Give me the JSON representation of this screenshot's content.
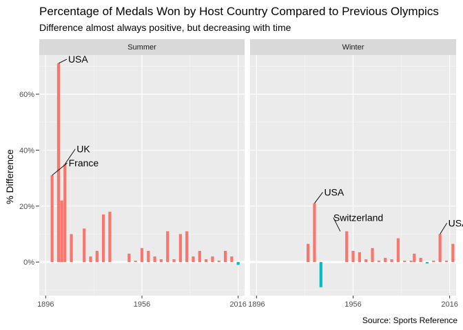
{
  "title": "Percentage of Medals Won by Host Country Compared to Previous Olympics",
  "subtitle": "Difference almost always positive, but decreasing with time",
  "caption": "Source: Sports Reference",
  "chart_data": {
    "type": "bar",
    "ylabel": "% Difference",
    "xlim": [
      1892,
      2020
    ],
    "ylim": [
      -0.12,
      0.74
    ],
    "x_ticks": [
      1896,
      1956,
      2016
    ],
    "x_tick_labels": [
      "1896",
      "1956",
      "2016"
    ],
    "y_ticks": [
      0,
      0.2,
      0.4,
      0.6
    ],
    "y_tick_labels": [
      "0%",
      "20%",
      "40%",
      "60%"
    ],
    "grid": true,
    "colors": {
      "positive": "#F8766D",
      "negative": "#00BFC4",
      "panel": "#EBEBEB",
      "strip": "#D9D9D9"
    },
    "panels": [
      {
        "name": "Summer",
        "bars": [
          {
            "year": 1900,
            "value": 0.31
          },
          {
            "year": 1904,
            "value": 0.71
          },
          {
            "year": 1906,
            "value": 0.22
          },
          {
            "year": 1908,
            "value": 0.35
          },
          {
            "year": 1912,
            "value": 0.1
          },
          {
            "year": 1920,
            "value": 0.12
          },
          {
            "year": 1924,
            "value": 0.02
          },
          {
            "year": 1928,
            "value": 0.04
          },
          {
            "year": 1932,
            "value": 0.17
          },
          {
            "year": 1936,
            "value": 0.18
          },
          {
            "year": 1948,
            "value": 0.03
          },
          {
            "year": 1952,
            "value": 0.005
          },
          {
            "year": 1956,
            "value": 0.05
          },
          {
            "year": 1960,
            "value": 0.04
          },
          {
            "year": 1964,
            "value": 0.02
          },
          {
            "year": 1968,
            "value": 0.01
          },
          {
            "year": 1972,
            "value": 0.11
          },
          {
            "year": 1976,
            "value": 0.01
          },
          {
            "year": 1980,
            "value": 0.1
          },
          {
            "year": 1984,
            "value": 0.11
          },
          {
            "year": 1988,
            "value": 0.02
          },
          {
            "year": 1992,
            "value": 0.04
          },
          {
            "year": 1996,
            "value": 0.01
          },
          {
            "year": 2000,
            "value": 0.02
          },
          {
            "year": 2004,
            "value": 0.005
          },
          {
            "year": 2008,
            "value": 0.04
          },
          {
            "year": 2012,
            "value": 0.02
          },
          {
            "year": 2016,
            "value": -0.01
          }
        ],
        "annotations": [
          {
            "label": "USA",
            "year": 1904,
            "value": 0.71
          },
          {
            "label": "UK",
            "year": 1908,
            "value": 0.35
          },
          {
            "label": "France",
            "year": 1900,
            "value": 0.31
          }
        ]
      },
      {
        "name": "Winter",
        "bars": [
          {
            "year": 1928,
            "value": 0.065
          },
          {
            "year": 1932,
            "value": 0.21
          },
          {
            "year": 1936,
            "value": -0.09
          },
          {
            "year": 1952,
            "value": 0.11
          },
          {
            "year": 1956,
            "value": 0.04
          },
          {
            "year": 1960,
            "value": 0.035
          },
          {
            "year": 1964,
            "value": 0.01
          },
          {
            "year": 1968,
            "value": 0.05
          },
          {
            "year": 1972,
            "value": 0.005
          },
          {
            "year": 1976,
            "value": 0.015
          },
          {
            "year": 1980,
            "value": 0.01
          },
          {
            "year": 1984,
            "value": 0.085
          },
          {
            "year": 1988,
            "value": 0.005
          },
          {
            "year": 1992,
            "value": 0.005
          },
          {
            "year": 1994,
            "value": 0.03
          },
          {
            "year": 1998,
            "value": 0.015
          },
          {
            "year": 2002,
            "value": -0.005
          },
          {
            "year": 2006,
            "value": 0.005
          },
          {
            "year": 2010,
            "value": 0.1
          },
          {
            "year": 2014,
            "value": 0.005
          },
          {
            "year": 2018,
            "value": 0.065
          }
        ],
        "annotations": [
          {
            "label": "USA",
            "year": 1932,
            "value": 0.21
          },
          {
            "label": "Switzerland",
            "year": 1948,
            "value": 0.11
          },
          {
            "label": "USA",
            "year": 2010,
            "value": 0.1
          }
        ]
      }
    ]
  }
}
